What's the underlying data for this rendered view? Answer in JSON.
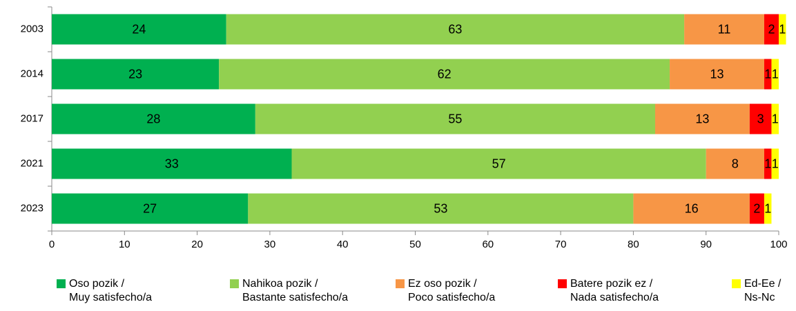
{
  "chart_data": {
    "type": "stacked-barh",
    "categories": [
      "2003",
      "2014",
      "2017",
      "2021",
      "2023"
    ],
    "series": [
      {
        "name": "Oso pozik /\nMuy satisfecho/a",
        "color": "#00b050",
        "values": [
          24,
          23,
          28,
          33,
          27
        ]
      },
      {
        "name": "Nahikoa pozik /\nBastante satisfecho/a",
        "color": "#92d050",
        "values": [
          63,
          62,
          55,
          57,
          53
        ]
      },
      {
        "name": "Ez oso pozik /\nPoco satisfecho/a",
        "color": "#f79646",
        "values": [
          11,
          13,
          13,
          8,
          16
        ]
      },
      {
        "name": "Batere pozik ez /\nNada satisfecho/a",
        "color": "#ff0000",
        "values": [
          2,
          1,
          3,
          1,
          2
        ]
      },
      {
        "name": "Ed-Ee /\nNs-Nc",
        "color": "#ffff00",
        "values": [
          1,
          1,
          1,
          1,
          1
        ]
      }
    ],
    "xlim": [
      0,
      100
    ],
    "xticks": [
      0,
      10,
      20,
      30,
      40,
      50,
      60,
      70,
      80,
      90,
      100
    ],
    "legend": "bottom"
  }
}
